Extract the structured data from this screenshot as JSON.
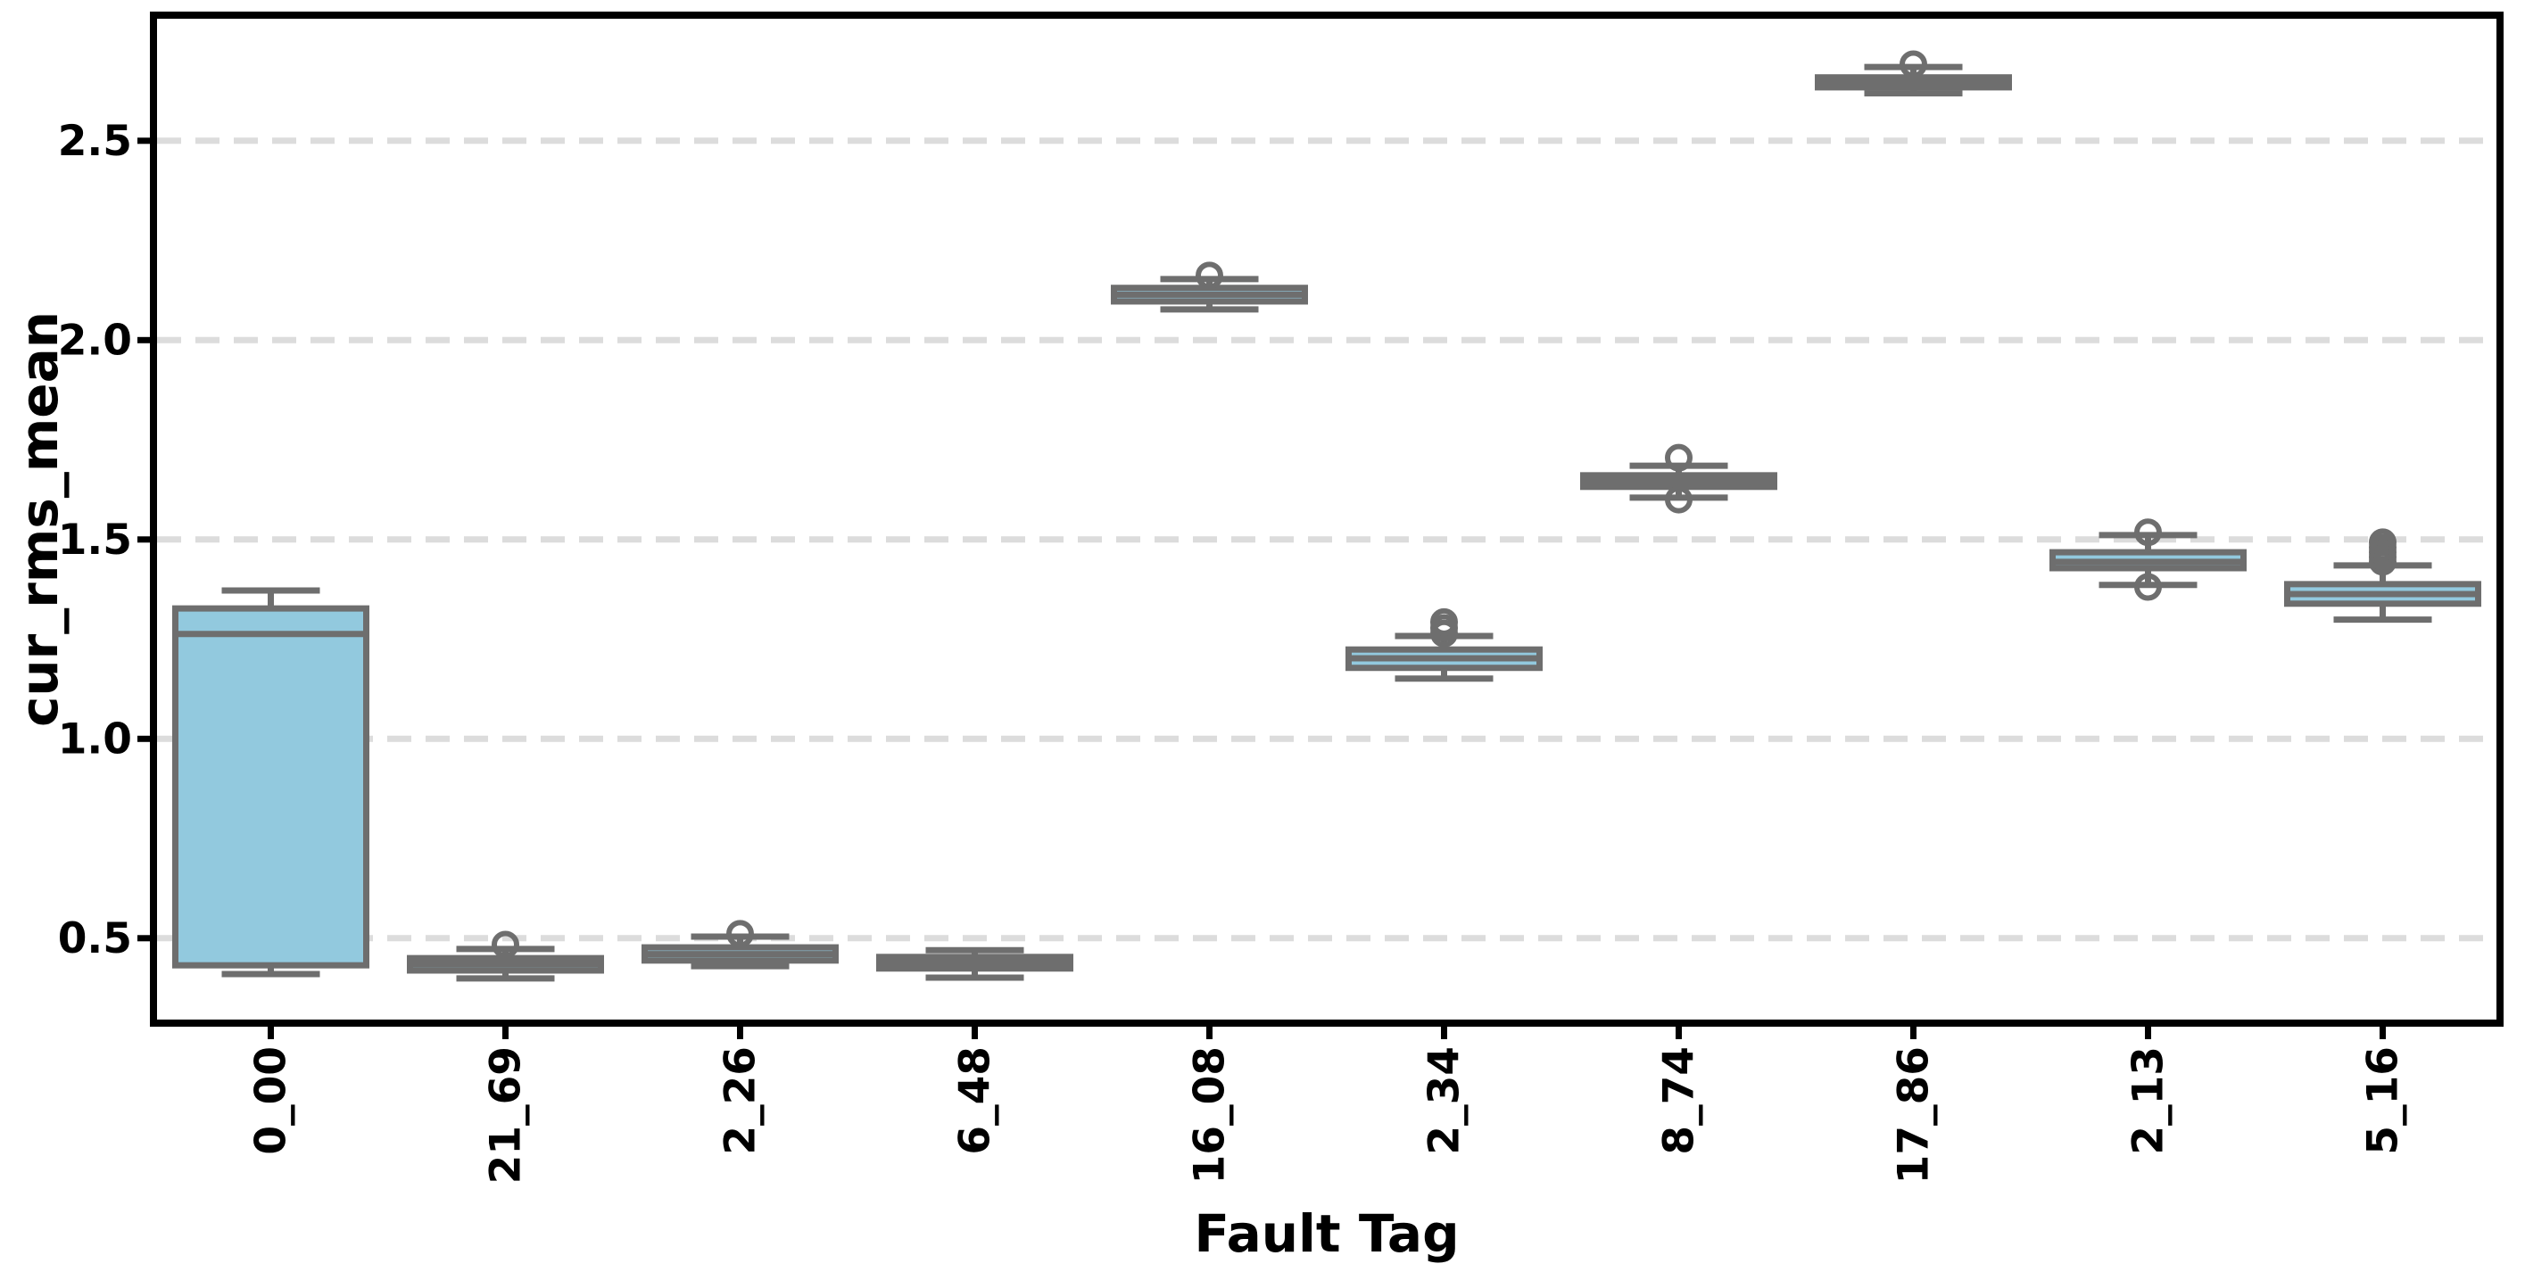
{
  "figure": {
    "background": "#ffffff"
  },
  "chart_data": {
    "type": "boxplot",
    "title": "",
    "xlabel": "Fault Tag",
    "ylabel": "cur_rms_mean",
    "categories": [
      "0_00",
      "21_69",
      "2_26",
      "6_48",
      "16_08",
      "2_34",
      "8_74",
      "17_86",
      "2_13",
      "5_16"
    ],
    "y_ticks": [
      0.5,
      1.0,
      1.5,
      2.0,
      2.5
    ],
    "ylim": [
      0.287,
      2.815
    ],
    "grid": "horizontal-dashed",
    "legend": "none",
    "boxes": [
      {
        "label": "0_00",
        "whislo": 0.41,
        "q1": 0.432,
        "med": 1.263,
        "q3": 1.327,
        "whishi": 1.372,
        "outliers": []
      },
      {
        "label": "21_69",
        "whislo": 0.399,
        "q1": 0.419,
        "med": 0.435,
        "q3": 0.45,
        "whishi": 0.473,
        "outliers": [
          0.484
        ]
      },
      {
        "label": "2_26",
        "whislo": 0.43,
        "q1": 0.444,
        "med": 0.46,
        "q3": 0.477,
        "whishi": 0.504,
        "outliers": [
          0.511
        ]
      },
      {
        "label": "6_48",
        "whislo": 0.401,
        "q1": 0.424,
        "med": 0.438,
        "q3": 0.453,
        "whishi": 0.47,
        "outliers": []
      },
      {
        "label": "16_08",
        "whislo": 2.077,
        "q1": 2.097,
        "med": 2.114,
        "q3": 2.131,
        "whishi": 2.153,
        "outliers": [
          2.162
        ]
      },
      {
        "label": "2_34",
        "whislo": 1.151,
        "q1": 1.178,
        "med": 1.202,
        "q3": 1.224,
        "whishi": 1.258,
        "outliers": [
          1.264,
          1.278,
          1.293
        ]
      },
      {
        "label": "8_74",
        "whislo": 1.605,
        "q1": 1.632,
        "med": 1.646,
        "q3": 1.661,
        "whishi": 1.685,
        "outliers": [
          1.6,
          1.705
        ]
      },
      {
        "label": "17_86",
        "whislo": 2.619,
        "q1": 2.634,
        "med": 2.647,
        "q3": 2.659,
        "whishi": 2.685,
        "outliers": [
          2.692
        ]
      },
      {
        "label": "2_13",
        "whislo": 1.386,
        "q1": 1.428,
        "med": 1.444,
        "q3": 1.468,
        "whishi": 1.511,
        "outliers": [
          1.381,
          1.518
        ]
      },
      {
        "label": "5_16",
        "whislo": 1.299,
        "q1": 1.339,
        "med": 1.363,
        "q3": 1.388,
        "whishi": 1.435,
        "outliers": [
          1.444,
          1.456,
          1.468,
          1.48,
          1.493
        ]
      }
    ],
    "colors": {
      "box_fill": "#92c9de",
      "box_edge": "#6e6e6e",
      "median": "#6e6e6e",
      "whisker": "#6e6e6e",
      "outlier": "#6e6e6e",
      "grid": "#dcdcdc",
      "axis": "#000000",
      "tick_label": "#000000",
      "background": "#ffffff"
    }
  }
}
